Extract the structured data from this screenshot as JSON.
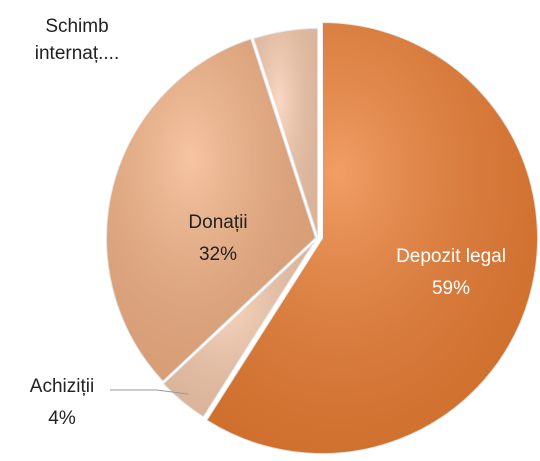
{
  "chart_data": {
    "type": "pie",
    "categories": [
      "Depozit legal",
      "Achiziții",
      "Donații",
      "Schimb internaț...."
    ],
    "values": [
      59,
      4,
      32,
      5
    ],
    "value_labels": [
      "59%",
      "4%",
      "32%",
      null
    ],
    "colors": [
      "#ED7D31",
      "#F8CBAD",
      "#F4B183",
      "#F8CBAD"
    ]
  }
}
